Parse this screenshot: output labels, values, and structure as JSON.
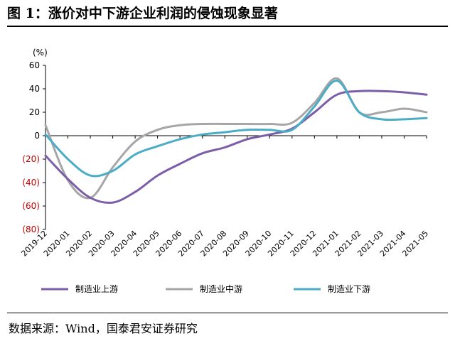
{
  "title": "图 1：涨价对中下游企业利润的侵蚀现象显著",
  "source": "数据来源：Wind，国泰君安证券研究",
  "chart_data": {
    "type": "line",
    "unit_label": "(%)",
    "ylim": [
      -80,
      60
    ],
    "yticks": [
      60,
      40,
      20,
      0,
      -20,
      -40,
      -60,
      -80
    ],
    "ytick_labels": [
      "60",
      "40",
      "20",
      "0",
      "(20)",
      "(40)",
      "(60)",
      "(80)"
    ],
    "negative_label_color": "#c00000",
    "categories": [
      "2019-12",
      "2020-01",
      "2020-02",
      "2020-03",
      "2020-04",
      "2020-05",
      "2020-06",
      "2020-07",
      "2020-08",
      "2020-09",
      "2020-10",
      "2020-11",
      "2020-12",
      "2021-01",
      "2021-02",
      "2021-03",
      "2021-04",
      "2021-05"
    ],
    "grid": false,
    "legend_position": "bottom",
    "series": [
      {
        "name": "制造业上游",
        "color": "#7b5ea7",
        "values": [
          -17,
          -37,
          -53,
          -57,
          -48,
          -34,
          -24,
          -15,
          -10,
          -3,
          1,
          6,
          20,
          35,
          38,
          38,
          37,
          35
        ]
      },
      {
        "name": "制造业中游",
        "color": "#a6a6a6",
        "values": [
          9,
          -38,
          -53,
          -27,
          -5,
          5,
          9,
          10,
          10,
          10,
          10,
          11,
          28,
          49,
          20,
          20,
          23,
          20
        ]
      },
      {
        "name": "制造业下游",
        "color": "#4bacc6",
        "values": [
          1,
          -20,
          -34,
          -30,
          -16,
          -9,
          -3,
          1,
          3,
          5,
          5,
          5,
          25,
          47,
          20,
          14,
          14,
          15
        ]
      }
    ]
  }
}
